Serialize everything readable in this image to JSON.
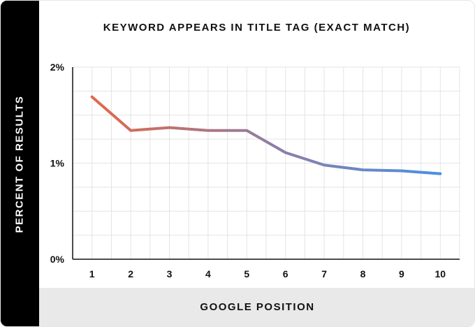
{
  "chart_data": {
    "type": "line",
    "title": "KEYWORD APPEARS IN TITLE TAG (EXACT MATCH)",
    "xlabel": "GOOGLE POSITION",
    "ylabel": "PERCENT OF RESULTS",
    "x": [
      1,
      2,
      3,
      4,
      5,
      6,
      7,
      8,
      9,
      10
    ],
    "x_tick_labels": [
      "1",
      "2",
      "3",
      "4",
      "5",
      "6",
      "7",
      "8",
      "9",
      "10"
    ],
    "y_ticks": [
      0,
      1,
      2
    ],
    "y_tick_labels": [
      "0%",
      "1%",
      "2%"
    ],
    "ylim": [
      0,
      2
    ],
    "xlim": [
      0.5,
      10.5
    ],
    "series": [
      {
        "values": [
          1.69,
          1.34,
          1.37,
          1.34,
          1.34,
          1.11,
          0.98,
          0.93,
          0.92,
          0.89
        ]
      }
    ],
    "line_gradient": [
      "#e2684a",
      "#8a7fa8",
      "#4a90e2"
    ],
    "grid": true,
    "legend": "none"
  }
}
